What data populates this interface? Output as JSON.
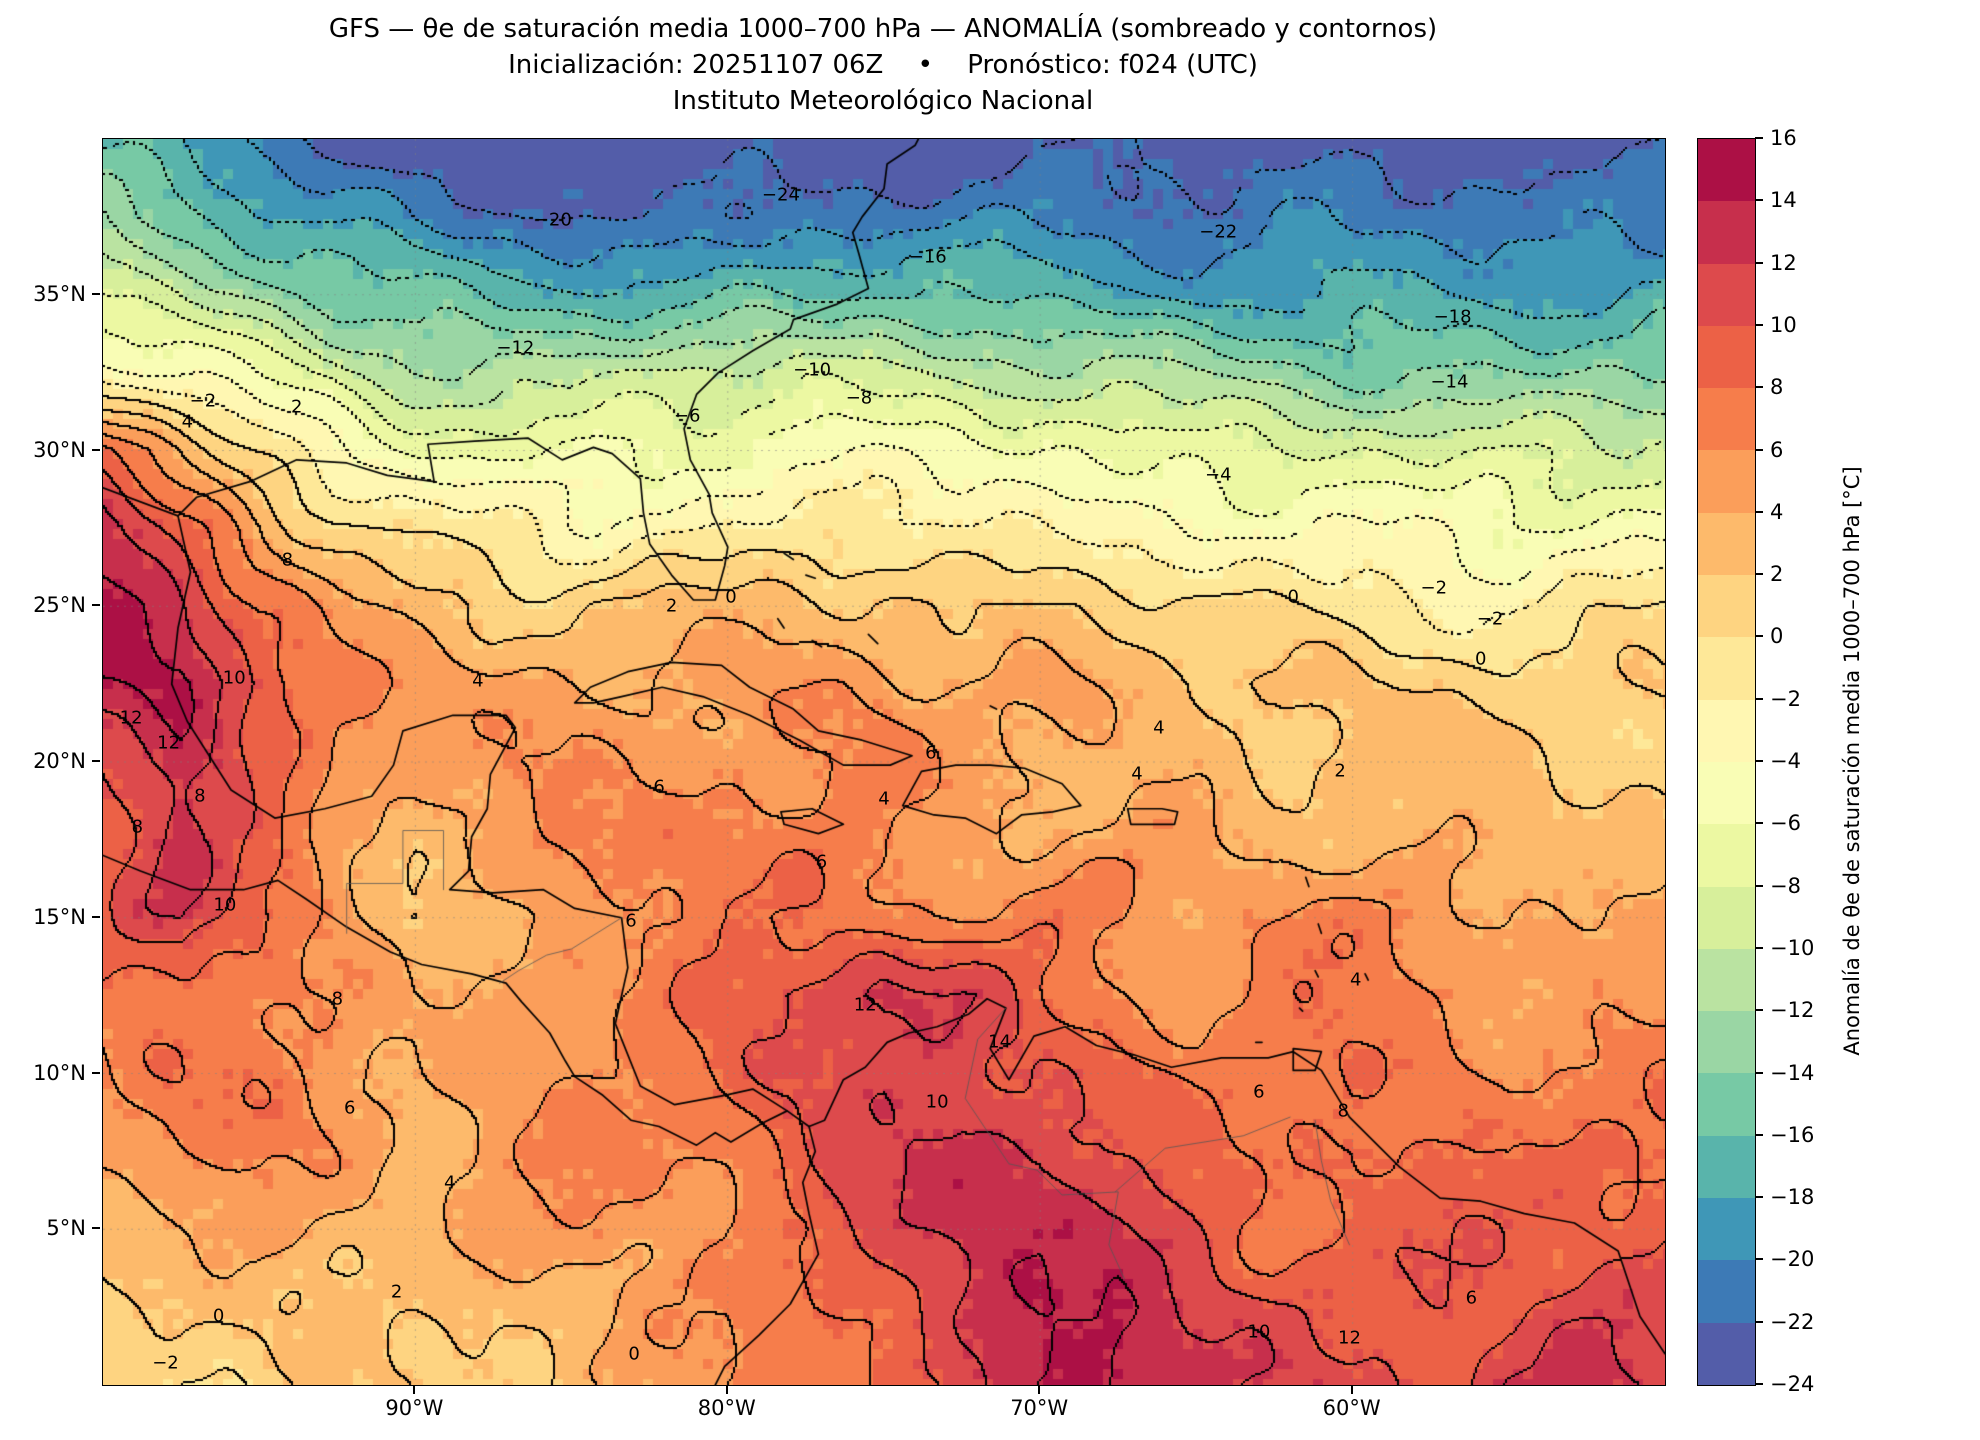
{
  "header": {
    "title": "GFS — θe de saturación media 1000–700 hPa — ANOMALÍA (sombreado y contornos)",
    "subtitle": "Inicialización: 20251107 06Z  •  Pronóstico: f024 (UTC)",
    "institution": "Instituto Meteorológico Nacional"
  },
  "chart_data": {
    "type": "heatmap",
    "title": "GFS — θe de saturación media 1000–700 hPa — ANOMALÍA (sombreado y contornos)",
    "subtitle": "Inicialización: 20251107 06Z • Pronóstico: f024 (UTC)",
    "institution": "Instituto Meteorológico Nacional",
    "units": "°C",
    "x_axis": {
      "range_lon": [
        -100,
        -50
      ],
      "ticks": [
        {
          "label": "90°W",
          "lon": -90
        },
        {
          "label": "80°W",
          "lon": -80
        },
        {
          "label": "70°W",
          "lon": -70
        },
        {
          "label": "60°W",
          "lon": -60
        }
      ]
    },
    "y_axis": {
      "range_lat": [
        0,
        40
      ],
      "ticks": [
        {
          "label": "35°N",
          "lat": 35
        },
        {
          "label": "30°N",
          "lat": 30
        },
        {
          "label": "25°N",
          "lat": 25
        },
        {
          "label": "20°N",
          "lat": 20
        },
        {
          "label": "15°N",
          "lat": 15
        },
        {
          "label": "10°N",
          "lat": 10
        },
        {
          "label": "5°N",
          "lat": 5
        }
      ]
    },
    "levels": {
      "min": -24,
      "max": 16,
      "step": 2
    },
    "colormap": {
      "name": "Spectral_r",
      "anchors_hot_to_cold": [
        "#9e0142",
        "#d53e4f",
        "#f46d43",
        "#fdae61",
        "#fee08b",
        "#ffffbf",
        "#e6f598",
        "#abdda4",
        "#66c2a5",
        "#3288bd",
        "#5e4fa2"
      ]
    },
    "colorbar": {
      "label": "Anomalía de θe de saturación media 1000–700 hPa [°C]",
      "tick_labels": [
        "16",
        "14",
        "12",
        "10",
        "8",
        "6",
        "4",
        "2",
        "0",
        "−2",
        "−4",
        "−6",
        "−8",
        "−10",
        "−12",
        "−14",
        "−16",
        "−18",
        "−20",
        "−22",
        "−24"
      ]
    },
    "grid": {
      "lon_start": -100,
      "lon_step": 2.5,
      "lat_start": 40,
      "lat_step": -2.5,
      "values": [
        [
          -17,
          -19,
          -21,
          -23,
          -24,
          -24,
          -24,
          -24,
          -24,
          -24,
          -24,
          -24,
          -23,
          -23,
          -23,
          -23,
          -23,
          -23,
          -23,
          -23,
          -23
        ],
        [
          -13,
          -15,
          -17,
          -19,
          -21,
          -22,
          -22,
          -22,
          -22,
          -21,
          -21,
          -21,
          -21,
          -21,
          -21,
          -21,
          -21,
          -21,
          -21,
          -21,
          -21
        ],
        [
          -8,
          -10,
          -12,
          -14,
          -16,
          -17,
          -17,
          -17,
          -16,
          -16,
          -16,
          -16,
          -17,
          -17,
          -18,
          -18,
          -18,
          -18,
          -18,
          -18,
          -18
        ],
        [
          -3,
          -5,
          -7,
          -9,
          -11,
          -11,
          -11,
          -10,
          -10,
          -9,
          -9,
          -10,
          -11,
          -12,
          -13,
          -13,
          -14,
          -14,
          -14,
          -14,
          -14
        ],
        [
          9,
          4,
          -1,
          -4,
          -6,
          -7,
          -7,
          -6,
          -6,
          -5,
          -5,
          -5,
          -6,
          -7,
          -7,
          -8,
          -8,
          -9,
          -9,
          -9,
          -9
        ],
        [
          13,
          9,
          5,
          1,
          -1,
          -2,
          -3,
          -2,
          -2,
          -1,
          -1,
          -2,
          -2,
          -3,
          -3,
          -4,
          -4,
          -5,
          -5,
          -5,
          -5
        ],
        [
          15,
          12,
          8,
          5,
          3,
          2,
          2,
          2,
          2,
          3,
          3,
          2,
          2,
          1,
          0,
          0,
          -1,
          -1,
          -2,
          -1,
          -1
        ],
        [
          13,
          14,
          10,
          7,
          5,
          4,
          4,
          4,
          5,
          5,
          5,
          4,
          4,
          3,
          3,
          2,
          2,
          1,
          1,
          1,
          2
        ],
        [
          11,
          14,
          9,
          6,
          5,
          5,
          6,
          6,
          6,
          6,
          6,
          5,
          4,
          4,
          3,
          2,
          3,
          2,
          2,
          2,
          2
        ],
        [
          10,
          12,
          8,
          5,
          4,
          5,
          6,
          7,
          7,
          7,
          6,
          5,
          5,
          4,
          4,
          3,
          4,
          4,
          3,
          3,
          3
        ],
        [
          8,
          12,
          9,
          5,
          1,
          3,
          5,
          6,
          7,
          7,
          7,
          6,
          6,
          6,
          5,
          6,
          6,
          5,
          4,
          4,
          4
        ],
        [
          7,
          8,
          8,
          6,
          3,
          4,
          6,
          7,
          9,
          11,
          13,
          11,
          8,
          7,
          6,
          7,
          7,
          6,
          5,
          5,
          5
        ],
        [
          6,
          7,
          7,
          6,
          4,
          5,
          6,
          7,
          8,
          10,
          12,
          12,
          10,
          8,
          7,
          8,
          8,
          7,
          6,
          7,
          7
        ],
        [
          5,
          6,
          6,
          5,
          4,
          5,
          6,
          6,
          7,
          9,
          11,
          13,
          12,
          9,
          8,
          7,
          9,
          8,
          7,
          8,
          9
        ],
        [
          3,
          4,
          5,
          4,
          3,
          4,
          5,
          6,
          7,
          8,
          10,
          13,
          14,
          13,
          10,
          8,
          8,
          9,
          9,
          10,
          10
        ],
        [
          1,
          2,
          3,
          3,
          2,
          3,
          4,
          5,
          5,
          8,
          10,
          12,
          14,
          14,
          12,
          10,
          9,
          10,
          11,
          11,
          10
        ],
        [
          -1,
          0,
          1,
          2,
          1,
          2,
          3,
          4,
          5,
          7,
          9,
          11,
          13,
          14,
          13,
          11,
          10,
          10,
          12,
          12,
          11
        ]
      ]
    },
    "contour_labels": [
      {
        "t": "−24",
        "lon": -78.3,
        "lat": 38.2
      },
      {
        "t": "−20",
        "lon": -85.6,
        "lat": 37.4
      },
      {
        "t": "−22",
        "lon": -64.3,
        "lat": 37.0
      },
      {
        "t": "−16",
        "lon": -73.6,
        "lat": 36.2
      },
      {
        "t": "−18",
        "lon": -56.8,
        "lat": 34.3
      },
      {
        "t": "−12",
        "lon": -86.8,
        "lat": 33.3
      },
      {
        "t": "−14",
        "lon": -56.9,
        "lat": 32.2
      },
      {
        "t": "−10",
        "lon": -77.3,
        "lat": 32.6
      },
      {
        "t": "−8",
        "lon": -75.8,
        "lat": 31.7
      },
      {
        "t": "−6",
        "lon": -81.3,
        "lat": 31.1
      },
      {
        "t": "−2",
        "lon": -96.8,
        "lat": 31.6
      },
      {
        "t": "4",
        "lon": -97.3,
        "lat": 30.9
      },
      {
        "t": "2",
        "lon": -93.8,
        "lat": 31.4
      },
      {
        "t": "−4",
        "lon": -64.3,
        "lat": 29.2
      },
      {
        "t": "8",
        "lon": -94.1,
        "lat": 26.5
      },
      {
        "t": "10",
        "lon": -95.8,
        "lat": 22.7
      },
      {
        "t": "12",
        "lon": -97.9,
        "lat": 20.6
      },
      {
        "t": "8",
        "lon": -96.9,
        "lat": 18.9
      },
      {
        "t": "10",
        "lon": -96.1,
        "lat": 15.4
      },
      {
        "t": "6",
        "lon": -82.2,
        "lat": 19.2
      },
      {
        "t": "2",
        "lon": -81.8,
        "lat": 25.0
      },
      {
        "t": "0",
        "lon": -79.9,
        "lat": 25.3
      },
      {
        "t": "4",
        "lon": -66.2,
        "lat": 21.1
      },
      {
        "t": "2",
        "lon": -60.4,
        "lat": 19.7
      },
      {
        "t": "0",
        "lon": -61.9,
        "lat": 25.3
      },
      {
        "t": "−2",
        "lon": -55.6,
        "lat": 24.6
      },
      {
        "t": "0",
        "lon": -55.9,
        "lat": 23.3
      },
      {
        "t": "−2",
        "lon": -57.4,
        "lat": 25.6
      },
      {
        "t": "4",
        "lon": -66.9,
        "lat": 19.6
      },
      {
        "t": "6",
        "lon": -83.1,
        "lat": 14.9
      },
      {
        "t": "8",
        "lon": -92.5,
        "lat": 12.4
      },
      {
        "t": "6",
        "lon": -92.1,
        "lat": 8.9
      },
      {
        "t": "4",
        "lon": -88.9,
        "lat": 6.5
      },
      {
        "t": "2",
        "lon": -90.6,
        "lat": 3.0
      },
      {
        "t": "0",
        "lon": -96.3,
        "lat": 2.2
      },
      {
        "t": "−2",
        "lon": -98.0,
        "lat": 0.7
      },
      {
        "t": "12",
        "lon": -75.6,
        "lat": 12.2
      },
      {
        "t": "14",
        "lon": -71.3,
        "lat": 11.0
      },
      {
        "t": "10",
        "lon": -73.3,
        "lat": 9.1
      },
      {
        "t": "8",
        "lon": -60.3,
        "lat": 8.8
      },
      {
        "t": "6",
        "lon": -63.0,
        "lat": 9.4
      },
      {
        "t": "10",
        "lon": -63.0,
        "lat": 1.7
      },
      {
        "t": "12",
        "lon": -60.1,
        "lat": 1.5
      },
      {
        "t": "6",
        "lon": -56.2,
        "lat": 2.8
      },
      {
        "t": "0",
        "lon": -83.0,
        "lat": 1.0
      },
      {
        "t": "4",
        "lon": -59.9,
        "lat": 13.0
      },
      {
        "t": "6",
        "lon": -77.0,
        "lat": 16.8
      },
      {
        "t": "8",
        "lon": -98.9,
        "lat": 17.9
      },
      {
        "t": "12",
        "lon": -99.1,
        "lat": 21.4
      },
      {
        "t": "4",
        "lon": -88.0,
        "lat": 22.6
      },
      {
        "t": "6",
        "lon": -73.5,
        "lat": 20.3
      },
      {
        "t": "4",
        "lon": -75.0,
        "lat": 18.8
      }
    ]
  }
}
